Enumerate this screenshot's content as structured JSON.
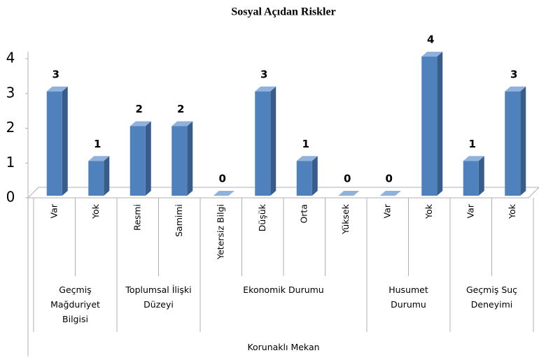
{
  "chart_data": {
    "type": "bar",
    "title": "Sosyal Açıdan Riskler",
    "group": "Korunaklı Mekan",
    "groups": [
      {
        "name": "Geçmiş Mağduriyet Bilgisi",
        "categories": [
          "Var",
          "Yok"
        ],
        "values": [
          3,
          1
        ]
      },
      {
        "name": "Toplumsal İlişki Düzeyi",
        "categories": [
          "Resmi",
          "Samimi"
        ],
        "values": [
          2,
          2
        ]
      },
      {
        "name": "Ekonomik Durumu",
        "categories": [
          "Yetersiz Bilgi",
          "Düşük",
          "Orta",
          "Yüksek"
        ],
        "values": [
          0,
          3,
          1,
          0
        ]
      },
      {
        "name": "Husumet Durumu",
        "categories": [
          "Var",
          "Yok"
        ],
        "values": [
          0,
          4
        ]
      },
      {
        "name": "Geçmiş Suç Deneyimi",
        "categories": [
          "Var",
          "Yok"
        ],
        "values": [
          1,
          3
        ]
      }
    ],
    "color": "#4f81bd",
    "ylim": [
      0,
      4
    ],
    "yticks": [
      0,
      1,
      2,
      3,
      4
    ]
  }
}
